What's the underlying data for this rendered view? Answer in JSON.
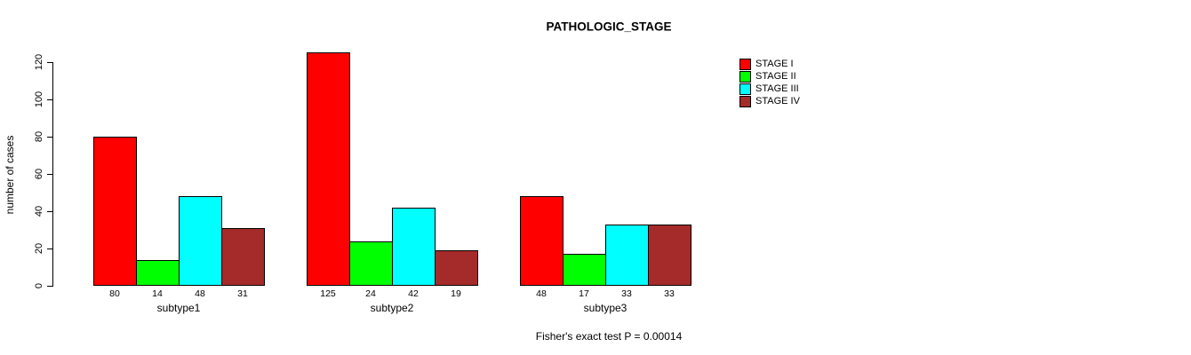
{
  "chart_data": {
    "type": "bar",
    "title": "PATHOLOGIC_STAGE",
    "ylabel": "number of cases",
    "xlabel": "",
    "categories": [
      "subtype1",
      "subtype2",
      "subtype3"
    ],
    "series": [
      {
        "name": "STAGE I",
        "color": "#FF0000",
        "values": [
          80,
          125,
          48
        ]
      },
      {
        "name": "STAGE II",
        "color": "#00FF00",
        "values": [
          14,
          24,
          17
        ]
      },
      {
        "name": "STAGE III",
        "color": "#00FFFF",
        "values": [
          48,
          42,
          33
        ]
      },
      {
        "name": "STAGE IV",
        "color": "#A52A2A",
        "values": [
          31,
          19,
          33
        ]
      }
    ],
    "value_labels_shown": true,
    "yticks": [
      0,
      20,
      40,
      60,
      80,
      100,
      120
    ],
    "ylim": [
      0,
      130
    ],
    "grid": false,
    "legend_position": "top-right",
    "annotation": "Fisher's exact test P = 0.00014"
  }
}
